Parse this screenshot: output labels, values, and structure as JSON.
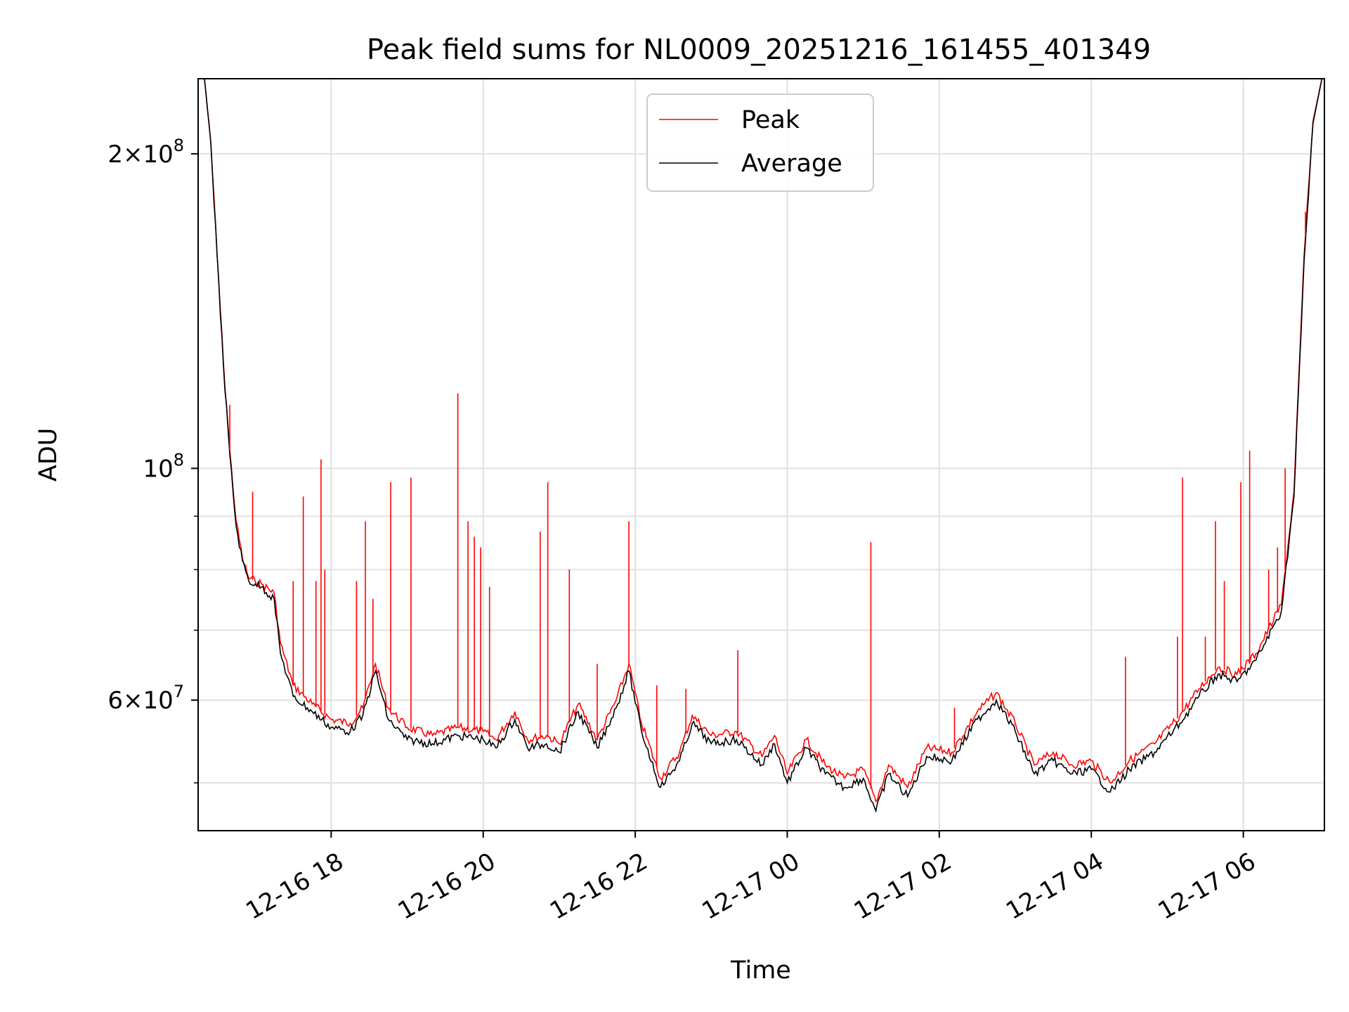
{
  "chart_data": {
    "type": "line",
    "title": "Peak field sums for NL0009_20251216_161455_401349",
    "xlabel": "Time",
    "ylabel": "ADU",
    "yscale": "log",
    "xlim": [
      "2025-12-16T16:15",
      "2025-12-17T07:04"
    ],
    "ylim": [
      45000000,
      236000000
    ],
    "xticks": [
      {
        "t": "2025-12-16T18:00",
        "label": "12-16 18"
      },
      {
        "t": "2025-12-16T20:00",
        "label": "12-16 20"
      },
      {
        "t": "2025-12-16T22:00",
        "label": "12-16 22"
      },
      {
        "t": "2025-12-17T00:00",
        "label": "12-17 00"
      },
      {
        "t": "2025-12-17T02:00",
        "label": "12-17 02"
      },
      {
        "t": "2025-12-17T04:00",
        "label": "12-17 04"
      },
      {
        "t": "2025-12-17T06:00",
        "label": "12-17 06"
      }
    ],
    "yticks_major": [
      {
        "v": 60000000,
        "base": "6",
        "exp": "7"
      },
      {
        "v": 100000000,
        "base": "",
        "exp": "8"
      },
      {
        "v": 200000000,
        "base": "2",
        "exp": "8"
      }
    ],
    "yticks_minor": [
      50000000,
      70000000,
      80000000,
      90000000
    ],
    "grid": true,
    "legend_position": "top-center",
    "series": [
      {
        "name": "Peak",
        "color": "#ff0000",
        "points": [
          [
            "2025-12-16T16:20",
            236000000
          ],
          [
            "2025-12-16T16:25",
            205000000
          ],
          [
            "2025-12-16T16:30",
            160000000
          ],
          [
            "2025-12-16T16:35",
            126000000
          ],
          [
            "2025-12-16T16:40",
            104000000
          ],
          [
            "2025-12-16T16:45",
            89000000
          ],
          [
            "2025-12-16T16:50",
            82000000
          ],
          [
            "2025-12-16T16:55",
            78500000
          ],
          [
            "2025-12-16T17:00",
            78000000
          ],
          [
            "2025-12-16T17:05",
            77500000
          ],
          [
            "2025-12-16T17:15",
            76000000
          ],
          [
            "2025-12-16T17:20",
            68000000
          ],
          [
            "2025-12-16T17:30",
            62000000
          ],
          [
            "2025-12-16T17:45",
            59500000
          ],
          [
            "2025-12-16T18:00",
            57500000
          ],
          [
            "2025-12-16T18:15",
            57000000
          ],
          [
            "2025-12-16T18:25",
            59000000
          ],
          [
            "2025-12-16T18:35",
            65000000
          ],
          [
            "2025-12-16T18:45",
            59000000
          ],
          [
            "2025-12-16T19:00",
            56500000
          ],
          [
            "2025-12-16T19:20",
            55500000
          ],
          [
            "2025-12-16T19:40",
            56500000
          ],
          [
            "2025-12-16T20:00",
            56000000
          ],
          [
            "2025-12-16T20:10",
            55000000
          ],
          [
            "2025-12-16T20:25",
            58500000
          ],
          [
            "2025-12-16T20:35",
            55000000
          ],
          [
            "2025-12-16T20:50",
            55500000
          ],
          [
            "2025-12-16T21:00",
            54500000
          ],
          [
            "2025-12-16T21:15",
            59500000
          ],
          [
            "2025-12-16T21:30",
            55000000
          ],
          [
            "2025-12-16T21:45",
            60000000
          ],
          [
            "2025-12-16T21:55",
            65000000
          ],
          [
            "2025-12-16T22:05",
            57000000
          ],
          [
            "2025-12-16T22:20",
            50500000
          ],
          [
            "2025-12-16T22:35",
            53500000
          ],
          [
            "2025-12-16T22:45",
            58000000
          ],
          [
            "2025-12-16T23:00",
            55500000
          ],
          [
            "2025-12-16T23:20",
            56000000
          ],
          [
            "2025-12-16T23:40",
            53000000
          ],
          [
            "2025-12-16T23:50",
            55500000
          ],
          [
            "2025-12-17T00:00",
            51000000
          ],
          [
            "2025-12-17T00:15",
            55000000
          ],
          [
            "2025-12-17T00:30",
            52000000
          ],
          [
            "2025-12-17T00:45",
            50500000
          ],
          [
            "2025-12-17T01:00",
            51500000
          ],
          [
            "2025-12-17T01:10",
            48000000
          ],
          [
            "2025-12-17T01:20",
            52000000
          ],
          [
            "2025-12-17T01:35",
            49500000
          ],
          [
            "2025-12-17T01:50",
            54000000
          ],
          [
            "2025-12-17T02:10",
            53500000
          ],
          [
            "2025-12-17T02:30",
            58500000
          ],
          [
            "2025-12-17T02:45",
            61000000
          ],
          [
            "2025-12-17T03:00",
            57000000
          ],
          [
            "2025-12-17T03:15",
            52000000
          ],
          [
            "2025-12-17T03:30",
            53500000
          ],
          [
            "2025-12-17T03:45",
            52000000
          ],
          [
            "2025-12-17T04:00",
            52500000
          ],
          [
            "2025-12-17T04:15",
            50000000
          ],
          [
            "2025-12-17T04:30",
            52500000
          ],
          [
            "2025-12-17T04:50",
            54500000
          ],
          [
            "2025-12-17T05:10",
            58000000
          ],
          [
            "2025-12-17T05:25",
            61500000
          ],
          [
            "2025-12-17T05:40",
            64500000
          ],
          [
            "2025-12-17T05:55",
            63500000
          ],
          [
            "2025-12-17T06:10",
            66500000
          ],
          [
            "2025-12-17T06:30",
            74000000
          ],
          [
            "2025-12-17T06:40",
            95000000
          ],
          [
            "2025-12-17T06:48",
            160000000
          ],
          [
            "2025-12-17T06:55",
            215000000
          ],
          [
            "2025-12-17T07:02",
            236000000
          ]
        ],
        "spikes": [
          [
            "2025-12-16T16:40",
            115000000
          ],
          [
            "2025-12-16T16:58",
            95000000
          ],
          [
            "2025-12-16T17:30",
            78000000
          ],
          [
            "2025-12-16T17:38",
            94000000
          ],
          [
            "2025-12-16T17:48",
            78000000
          ],
          [
            "2025-12-16T17:52",
            102000000
          ],
          [
            "2025-12-16T17:55",
            80000000
          ],
          [
            "2025-12-16T18:20",
            78000000
          ],
          [
            "2025-12-16T18:27",
            89000000
          ],
          [
            "2025-12-16T18:33",
            75000000
          ],
          [
            "2025-12-16T18:47",
            97000000
          ],
          [
            "2025-12-16T19:03",
            98000000
          ],
          [
            "2025-12-16T19:40",
            118000000
          ],
          [
            "2025-12-16T19:48",
            89000000
          ],
          [
            "2025-12-16T19:53",
            86000000
          ],
          [
            "2025-12-16T19:58",
            84000000
          ],
          [
            "2025-12-16T20:05",
            77000000
          ],
          [
            "2025-12-16T20:45",
            87000000
          ],
          [
            "2025-12-16T20:51",
            97000000
          ],
          [
            "2025-12-16T21:08",
            80000000
          ],
          [
            "2025-12-16T21:30",
            65000000
          ],
          [
            "2025-12-16T21:55",
            89000000
          ],
          [
            "2025-12-16T22:17",
            62000000
          ],
          [
            "2025-12-16T22:40",
            61500000
          ],
          [
            "2025-12-16T23:21",
            67000000
          ],
          [
            "2025-12-17T01:06",
            85000000
          ],
          [
            "2025-12-17T02:12",
            59000000
          ],
          [
            "2025-12-17T04:27",
            66000000
          ],
          [
            "2025-12-17T05:08",
            69000000
          ],
          [
            "2025-12-17T05:12",
            98000000
          ],
          [
            "2025-12-17T05:30",
            69000000
          ],
          [
            "2025-12-17T05:38",
            89000000
          ],
          [
            "2025-12-17T05:45",
            78000000
          ],
          [
            "2025-12-17T05:58",
            97000000
          ],
          [
            "2025-12-17T06:05",
            104000000
          ],
          [
            "2025-12-17T06:20",
            80000000
          ],
          [
            "2025-12-17T06:27",
            84000000
          ],
          [
            "2025-12-17T06:33",
            100000000
          ],
          [
            "2025-12-17T06:49",
            176000000
          ]
        ]
      },
      {
        "name": "Average",
        "color": "#000000",
        "points": [
          [
            "2025-12-16T16:20",
            236000000
          ],
          [
            "2025-12-16T16:25",
            205000000
          ],
          [
            "2025-12-16T16:30",
            160000000
          ],
          [
            "2025-12-16T16:35",
            125000000
          ],
          [
            "2025-12-16T16:40",
            103000000
          ],
          [
            "2025-12-16T16:45",
            88000000
          ],
          [
            "2025-12-16T16:50",
            81500000
          ],
          [
            "2025-12-16T16:55",
            78000000
          ],
          [
            "2025-12-16T17:00",
            77500000
          ],
          [
            "2025-12-16T17:05",
            77000000
          ],
          [
            "2025-12-16T17:15",
            75000000
          ],
          [
            "2025-12-16T17:20",
            66500000
          ],
          [
            "2025-12-16T17:30",
            60500000
          ],
          [
            "2025-12-16T17:45",
            58500000
          ],
          [
            "2025-12-16T18:00",
            56500000
          ],
          [
            "2025-12-16T18:15",
            56000000
          ],
          [
            "2025-12-16T18:25",
            58000000
          ],
          [
            "2025-12-16T18:35",
            64000000
          ],
          [
            "2025-12-16T18:45",
            57500000
          ],
          [
            "2025-12-16T19:00",
            55000000
          ],
          [
            "2025-12-16T19:20",
            54500000
          ],
          [
            "2025-12-16T19:40",
            55500000
          ],
          [
            "2025-12-16T20:00",
            55000000
          ],
          [
            "2025-12-16T20:10",
            54000000
          ],
          [
            "2025-12-16T20:25",
            57500000
          ],
          [
            "2025-12-16T20:35",
            54000000
          ],
          [
            "2025-12-16T20:50",
            54500000
          ],
          [
            "2025-12-16T21:00",
            53500000
          ],
          [
            "2025-12-16T21:15",
            58500000
          ],
          [
            "2025-12-16T21:30",
            54000000
          ],
          [
            "2025-12-16T21:45",
            59000000
          ],
          [
            "2025-12-16T21:55",
            64000000
          ],
          [
            "2025-12-16T22:05",
            56000000
          ],
          [
            "2025-12-16T22:20",
            49500000
          ],
          [
            "2025-12-16T22:35",
            52500000
          ],
          [
            "2025-12-16T22:45",
            57000000
          ],
          [
            "2025-12-16T23:00",
            54500000
          ],
          [
            "2025-12-16T23:20",
            55000000
          ],
          [
            "2025-12-16T23:40",
            52000000
          ],
          [
            "2025-12-16T23:50",
            54500000
          ],
          [
            "2025-12-17T00:00",
            50000000
          ],
          [
            "2025-12-17T00:15",
            54000000
          ],
          [
            "2025-12-17T00:30",
            51000000
          ],
          [
            "2025-12-17T00:45",
            49500000
          ],
          [
            "2025-12-17T01:00",
            50500000
          ],
          [
            "2025-12-17T01:10",
            47000000
          ],
          [
            "2025-12-17T01:20",
            51000000
          ],
          [
            "2025-12-17T01:35",
            48500000
          ],
          [
            "2025-12-17T01:50",
            53000000
          ],
          [
            "2025-12-17T02:10",
            52500000
          ],
          [
            "2025-12-17T02:30",
            57500000
          ],
          [
            "2025-12-17T02:45",
            60000000
          ],
          [
            "2025-12-17T03:00",
            56000000
          ],
          [
            "2025-12-17T03:15",
            51000000
          ],
          [
            "2025-12-17T03:30",
            52500000
          ],
          [
            "2025-12-17T03:45",
            51000000
          ],
          [
            "2025-12-17T04:00",
            51500000
          ],
          [
            "2025-12-17T04:15",
            49000000
          ],
          [
            "2025-12-17T04:30",
            51500000
          ],
          [
            "2025-12-17T04:50",
            53500000
          ],
          [
            "2025-12-17T05:10",
            57000000
          ],
          [
            "2025-12-17T05:25",
            60500000
          ],
          [
            "2025-12-17T05:40",
            63500000
          ],
          [
            "2025-12-17T05:55",
            62500000
          ],
          [
            "2025-12-17T06:10",
            65500000
          ],
          [
            "2025-12-17T06:30",
            73000000
          ],
          [
            "2025-12-17T06:40",
            94000000
          ],
          [
            "2025-12-17T06:48",
            158000000
          ],
          [
            "2025-12-17T06:55",
            214000000
          ],
          [
            "2025-12-17T07:02",
            236000000
          ]
        ]
      }
    ]
  }
}
